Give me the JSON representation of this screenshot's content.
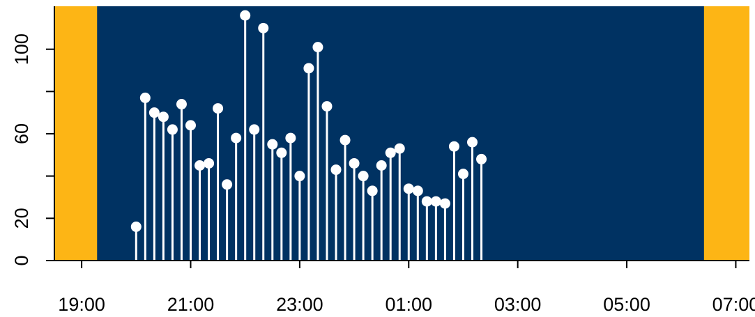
{
  "chart_data": {
    "type": "lollipop",
    "title": "",
    "xlabel": "",
    "ylabel": "",
    "colors": {
      "day_band": "#FDB515",
      "night_band": "#003262",
      "stems": "#FFFFFF",
      "points": "#FFFFFF"
    },
    "x_ticks": [
      "19:00",
      "21:00",
      "23:00",
      "01:00",
      "03:00",
      "05:00",
      "07:00"
    ],
    "y_ticks": [
      0,
      20,
      40,
      60,
      80,
      100
    ],
    "y_tick_labels": [
      "0",
      "20",
      "",
      "60",
      "",
      "100"
    ],
    "ylim": [
      0,
      120
    ],
    "xlim": [
      "18:30",
      "07:15"
    ],
    "night_interval": {
      "start": "19:17",
      "end": "06:25"
    },
    "x": [
      "20:00",
      "20:10",
      "20:20",
      "20:30",
      "20:40",
      "20:50",
      "21:00",
      "21:10",
      "21:20",
      "21:30",
      "21:40",
      "21:50",
      "22:00",
      "22:10",
      "22:20",
      "22:30",
      "22:40",
      "22:50",
      "23:00",
      "23:10",
      "23:20",
      "23:30",
      "23:40",
      "23:50",
      "00:00",
      "00:10",
      "00:20",
      "00:30",
      "00:40",
      "00:50",
      "01:00",
      "01:10",
      "01:20",
      "01:30",
      "01:40",
      "01:50",
      "02:00",
      "02:10",
      "02:20"
    ],
    "values": [
      16,
      77,
      70,
      68,
      62,
      74,
      64,
      45,
      46,
      72,
      36,
      58,
      116,
      62,
      110,
      55,
      51,
      58,
      40,
      91,
      101,
      73,
      43,
      57,
      46,
      40,
      33,
      45,
      51,
      53,
      34,
      33,
      28,
      28,
      27,
      54,
      41,
      56,
      48
    ]
  }
}
